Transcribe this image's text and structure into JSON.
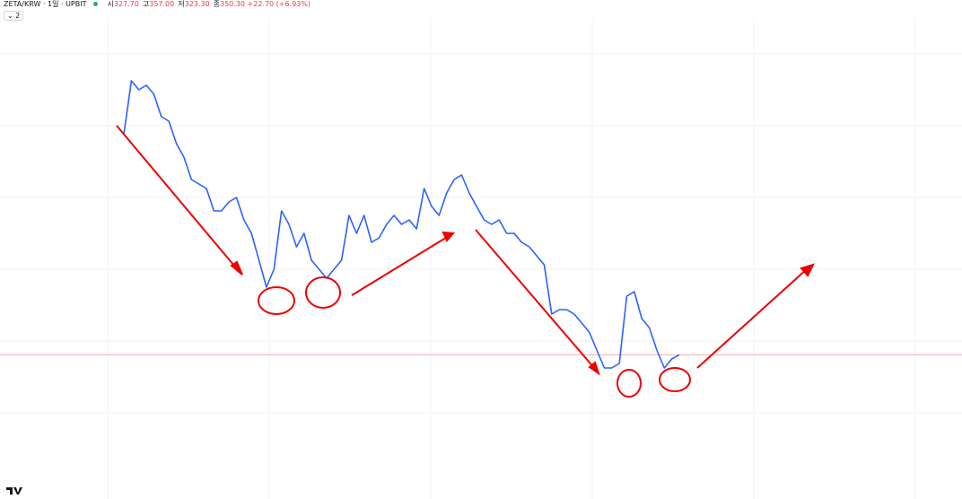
{
  "header": {
    "symbol": "ZETA/KRW · 1일 · UPBIT",
    "open_label": "시",
    "open": "327.70",
    "high_label": "고",
    "high": "357.00",
    "low_label": "저",
    "low": "323.30",
    "close_label": "종",
    "close": "350.30",
    "change": "+22.70 (+6.93%)",
    "indicators": "2"
  },
  "chart_data": {
    "type": "line",
    "color": "#2962ff",
    "ylim": [
      0,
      1300
    ],
    "last_price": 350.3,
    "values": [
      988,
      1144,
      1118,
      1131,
      1105,
      1040,
      1027,
      962,
      923,
      858,
      845,
      832,
      767,
      767,
      793,
      806,
      741,
      702,
      624,
      546,
      598,
      767,
      728,
      663,
      702,
      624,
      598,
      572,
      598,
      624,
      754,
      702,
      754,
      676,
      689,
      728,
      754,
      728,
      741,
      715,
      832,
      780,
      754,
      819,
      858,
      871,
      819,
      780,
      741,
      728,
      741,
      702,
      702,
      676,
      663,
      637,
      611,
      468,
      481,
      481,
      468,
      442,
      416,
      364,
      312,
      312,
      325,
      520,
      533,
      455,
      429,
      364,
      312,
      338,
      350.3
    ]
  }
}
